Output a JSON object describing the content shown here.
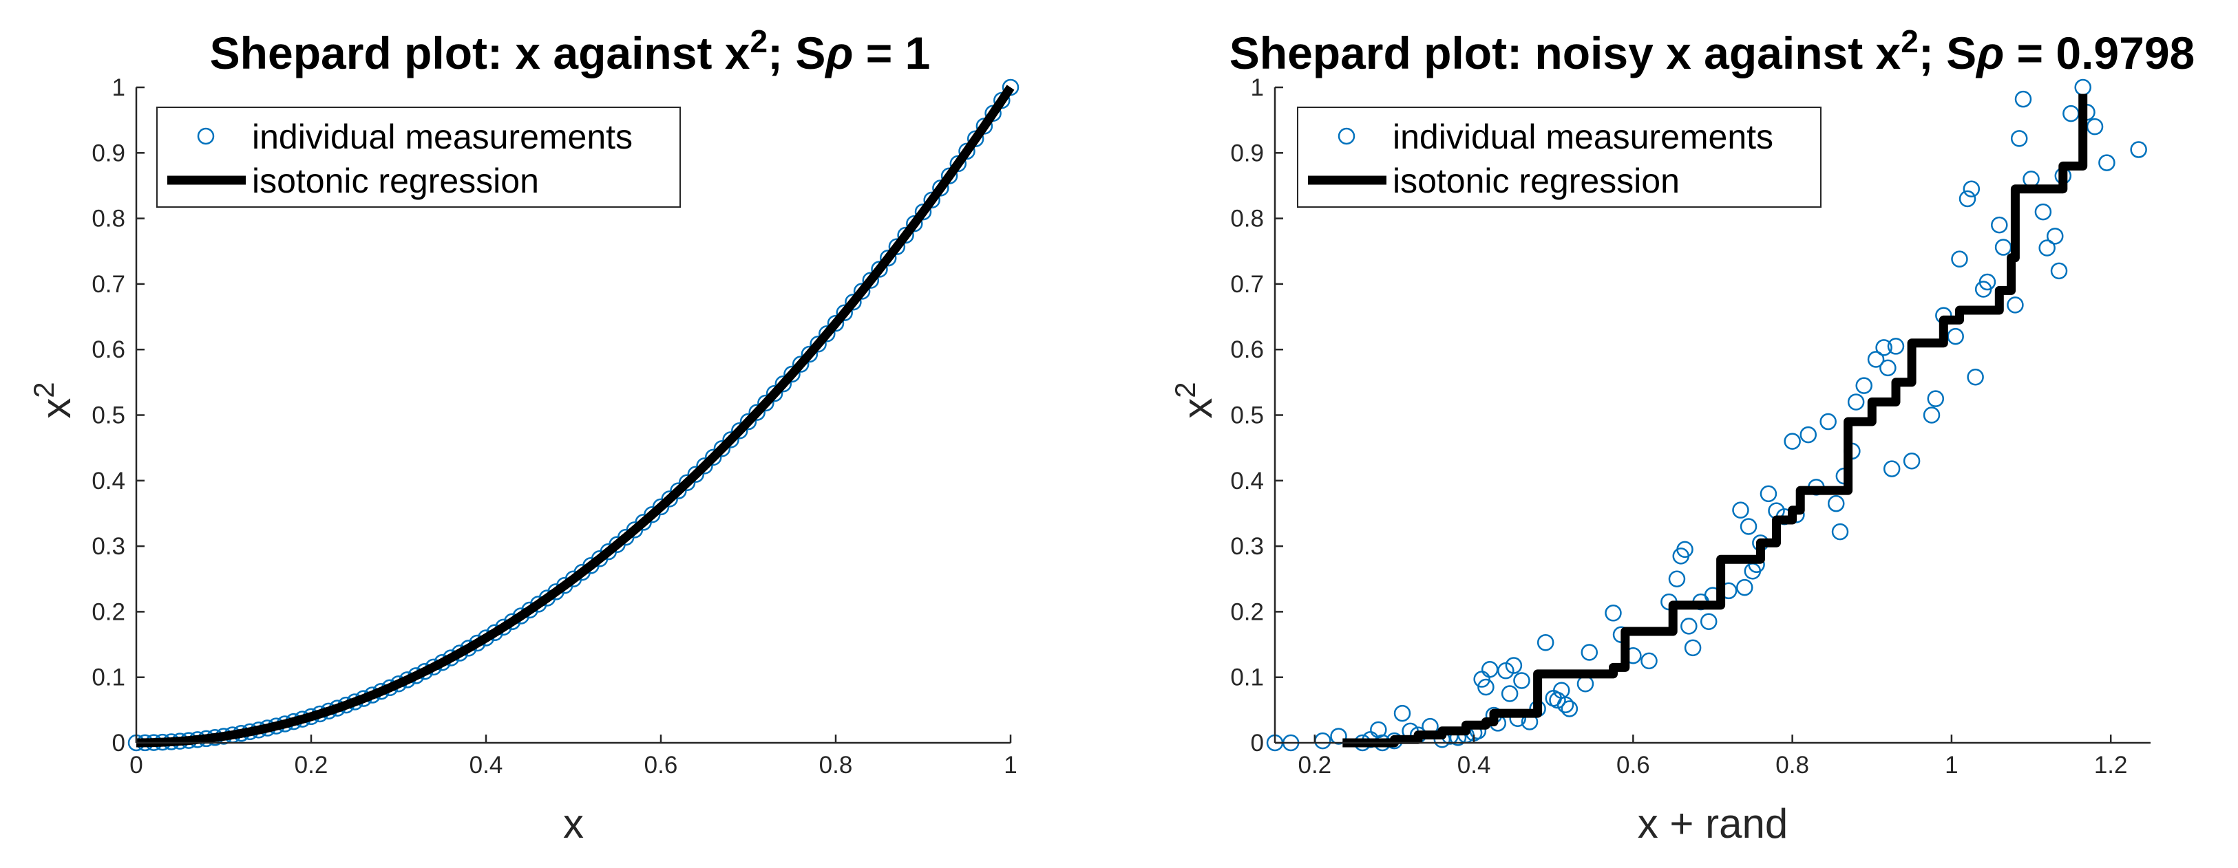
{
  "colors": {
    "marker": "#0072BD",
    "line": "#000000",
    "axis": "#262626",
    "background": "#ffffff"
  },
  "chart_data": [
    {
      "type": "scatter",
      "title_parts": {
        "pre": "Shepard plot: x against x",
        "sup": "2",
        "mid": "; S",
        "greek": "ρ",
        "post": " = 1"
      },
      "xlabel": "x",
      "ylabel": {
        "base": "x",
        "sup": "2"
      },
      "xlim": [
        0,
        1
      ],
      "ylim": [
        0,
        1
      ],
      "xticks": [
        0,
        0.2,
        0.4,
        0.6,
        0.8,
        1
      ],
      "xtick_labels": [
        "0",
        "0.2",
        "0.4",
        "0.6",
        "0.8",
        "1"
      ],
      "yticks": [
        0,
        0.1,
        0.2,
        0.3,
        0.4,
        0.5,
        0.6,
        0.7,
        0.8,
        0.9,
        1
      ],
      "ytick_labels": [
        "0",
        "0.1",
        "0.2",
        "0.3",
        "0.4",
        "0.5",
        "0.6",
        "0.7",
        "0.8",
        "0.9",
        "1"
      ],
      "legend": {
        "position": "top-left",
        "entries": [
          "individual measurements",
          "isotonic regression"
        ]
      },
      "series": [
        {
          "name": "individual measurements",
          "kind": "markers",
          "x": [
            0,
            0.01,
            0.02,
            0.03,
            0.04,
            0.05,
            0.06,
            0.07,
            0.08,
            0.09,
            0.1,
            0.11,
            0.12,
            0.13,
            0.14,
            0.15,
            0.16,
            0.17,
            0.18,
            0.19,
            0.2,
            0.21,
            0.22,
            0.23,
            0.24,
            0.25,
            0.26,
            0.27,
            0.28,
            0.29,
            0.3,
            0.31,
            0.32,
            0.33,
            0.34,
            0.35,
            0.36,
            0.37,
            0.38,
            0.39,
            0.4,
            0.41,
            0.42,
            0.43,
            0.44,
            0.45,
            0.46,
            0.47,
            0.48,
            0.49,
            0.5,
            0.51,
            0.52,
            0.53,
            0.54,
            0.55,
            0.56,
            0.57,
            0.58,
            0.59,
            0.6,
            0.61,
            0.62,
            0.63,
            0.64,
            0.65,
            0.66,
            0.67,
            0.68,
            0.69,
            0.7,
            0.71,
            0.72,
            0.73,
            0.74,
            0.75,
            0.76,
            0.77,
            0.78,
            0.79,
            0.8,
            0.81,
            0.82,
            0.83,
            0.84,
            0.85,
            0.86,
            0.87,
            0.88,
            0.89,
            0.9,
            0.91,
            0.92,
            0.93,
            0.94,
            0.95,
            0.96,
            0.97,
            0.98,
            0.99,
            1
          ],
          "y": [
            0,
            0.0001,
            0.0004,
            0.0009,
            0.0016,
            0.0025,
            0.0036,
            0.0049,
            0.0064,
            0.0081,
            0.01,
            0.0121,
            0.0144,
            0.0169,
            0.0196,
            0.0225,
            0.0256,
            0.0289,
            0.0324,
            0.0361,
            0.04,
            0.0441,
            0.0484,
            0.0529,
            0.0576,
            0.0625,
            0.0676,
            0.0729,
            0.0784,
            0.0841,
            0.09,
            0.0961,
            0.1024,
            0.1089,
            0.1156,
            0.1225,
            0.1296,
            0.1369,
            0.1444,
            0.1521,
            0.16,
            0.1681,
            0.1764,
            0.1849,
            0.1936,
            0.2025,
            0.2116,
            0.2209,
            0.2304,
            0.2401,
            0.25,
            0.2601,
            0.2704,
            0.2809,
            0.2916,
            0.3025,
            0.3136,
            0.3249,
            0.3364,
            0.3481,
            0.36,
            0.3721,
            0.3844,
            0.3969,
            0.4096,
            0.4225,
            0.4356,
            0.4489,
            0.4624,
            0.4761,
            0.49,
            0.5041,
            0.5184,
            0.5329,
            0.5476,
            0.5625,
            0.5776,
            0.5929,
            0.6084,
            0.6241,
            0.64,
            0.6561,
            0.6724,
            0.6889,
            0.7056,
            0.7225,
            0.7396,
            0.7569,
            0.7744,
            0.7921,
            0.81,
            0.8281,
            0.8464,
            0.8649,
            0.8836,
            0.9025,
            0.9216,
            0.9409,
            0.9604,
            0.9801,
            1
          ]
        },
        {
          "name": "isotonic regression",
          "kind": "line",
          "x": [
            0,
            0.01,
            0.02,
            0.03,
            0.04,
            0.05,
            0.06,
            0.07,
            0.08,
            0.09,
            0.1,
            0.11,
            0.12,
            0.13,
            0.14,
            0.15,
            0.16,
            0.17,
            0.18,
            0.19,
            0.2,
            0.21,
            0.22,
            0.23,
            0.24,
            0.25,
            0.26,
            0.27,
            0.28,
            0.29,
            0.3,
            0.31,
            0.32,
            0.33,
            0.34,
            0.35,
            0.36,
            0.37,
            0.38,
            0.39,
            0.4,
            0.41,
            0.42,
            0.43,
            0.44,
            0.45,
            0.46,
            0.47,
            0.48,
            0.49,
            0.5,
            0.51,
            0.52,
            0.53,
            0.54,
            0.55,
            0.56,
            0.57,
            0.58,
            0.59,
            0.6,
            0.61,
            0.62,
            0.63,
            0.64,
            0.65,
            0.66,
            0.67,
            0.68,
            0.69,
            0.7,
            0.71,
            0.72,
            0.73,
            0.74,
            0.75,
            0.76,
            0.77,
            0.78,
            0.79,
            0.8,
            0.81,
            0.82,
            0.83,
            0.84,
            0.85,
            0.86,
            0.87,
            0.88,
            0.89,
            0.9,
            0.91,
            0.92,
            0.93,
            0.94,
            0.95,
            0.96,
            0.97,
            0.98,
            0.99,
            1
          ],
          "y": [
            0,
            0.0001,
            0.0004,
            0.0009,
            0.0016,
            0.0025,
            0.0036,
            0.0049,
            0.0064,
            0.0081,
            0.01,
            0.0121,
            0.0144,
            0.0169,
            0.0196,
            0.0225,
            0.0256,
            0.0289,
            0.0324,
            0.0361,
            0.04,
            0.0441,
            0.0484,
            0.0529,
            0.0576,
            0.0625,
            0.0676,
            0.0729,
            0.0784,
            0.0841,
            0.09,
            0.0961,
            0.1024,
            0.1089,
            0.1156,
            0.1225,
            0.1296,
            0.1369,
            0.1444,
            0.1521,
            0.16,
            0.1681,
            0.1764,
            0.1849,
            0.1936,
            0.2025,
            0.2116,
            0.2209,
            0.2304,
            0.2401,
            0.25,
            0.2601,
            0.2704,
            0.2809,
            0.2916,
            0.3025,
            0.3136,
            0.3249,
            0.3364,
            0.3481,
            0.36,
            0.3721,
            0.3844,
            0.3969,
            0.4096,
            0.4225,
            0.4356,
            0.4489,
            0.4624,
            0.4761,
            0.49,
            0.5041,
            0.5184,
            0.5329,
            0.5476,
            0.5625,
            0.5776,
            0.5929,
            0.6084,
            0.6241,
            0.64,
            0.6561,
            0.6724,
            0.6889,
            0.7056,
            0.7225,
            0.7396,
            0.7569,
            0.7744,
            0.7921,
            0.81,
            0.8281,
            0.8464,
            0.8649,
            0.8836,
            0.9025,
            0.9216,
            0.9409,
            0.9604,
            0.9801,
            1
          ]
        }
      ]
    },
    {
      "type": "scatter",
      "title_parts": {
        "pre": "Shepard plot: noisy x against x",
        "sup": "2",
        "mid": "; S",
        "greek": "ρ",
        "post": " = 0.9798"
      },
      "xlabel": "x + rand",
      "ylabel": {
        "base": "x",
        "sup": "2"
      },
      "xlim": [
        0.15,
        1.25
      ],
      "ylim": [
        0,
        1
      ],
      "xticks": [
        0.2,
        0.4,
        0.6,
        0.8,
        1,
        1.2
      ],
      "xtick_labels": [
        "0.2",
        "0.4",
        "0.6",
        "0.8",
        "1",
        "1.2"
      ],
      "yticks": [
        0,
        0.1,
        0.2,
        0.3,
        0.4,
        0.5,
        0.6,
        0.7,
        0.8,
        0.9,
        1
      ],
      "ytick_labels": [
        "0",
        "0.1",
        "0.2",
        "0.3",
        "0.4",
        "0.5",
        "0.6",
        "0.7",
        "0.8",
        "0.9",
        "1"
      ],
      "legend": {
        "position": "top-left",
        "entries": [
          "individual measurements",
          "isotonic regression"
        ]
      },
      "series": [
        {
          "name": "individual measurements",
          "kind": "markers",
          "x": [
            0.15,
            0.17,
            0.21,
            0.23,
            0.26,
            0.27,
            0.28,
            0.285,
            0.3,
            0.31,
            0.32,
            0.33,
            0.345,
            0.36,
            0.37,
            0.38,
            0.39,
            0.4,
            0.405,
            0.41,
            0.415,
            0.42,
            0.425,
            0.43,
            0.44,
            0.445,
            0.45,
            0.455,
            0.46,
            0.47,
            0.48,
            0.49,
            0.5,
            0.505,
            0.51,
            0.515,
            0.52,
            0.54,
            0.545,
            0.575,
            0.585,
            0.6,
            0.62,
            0.645,
            0.655,
            0.66,
            0.665,
            0.67,
            0.675,
            0.685,
            0.695,
            0.7,
            0.72,
            0.735,
            0.74,
            0.745,
            0.75,
            0.755,
            0.76,
            0.77,
            0.78,
            0.79,
            0.8,
            0.805,
            0.82,
            0.83,
            0.845,
            0.855,
            0.86,
            0.865,
            0.875,
            0.88,
            0.89,
            0.905,
            0.915,
            0.92,
            0.925,
            0.93,
            0.95,
            0.975,
            0.98,
            0.99,
            1.005,
            1.01,
            1.02,
            1.025,
            1.03,
            1.04,
            1.045,
            1.06,
            1.065,
            1.08,
            1.085,
            1.09,
            1.1,
            1.115,
            1.12,
            1.13,
            1.135,
            1.14,
            1.15,
            1.165,
            1.17,
            1.18,
            1.195,
            1.235
          ],
          "y": [
            0.0,
            0.0,
            0.003,
            0.01,
            0.0,
            0.005,
            0.02,
            0.0,
            0.003,
            0.045,
            0.018,
            0.012,
            0.025,
            0.005,
            0.01,
            0.008,
            0.012,
            0.015,
            0.018,
            0.097,
            0.085,
            0.112,
            0.042,
            0.03,
            0.11,
            0.075,
            0.118,
            0.037,
            0.095,
            0.032,
            0.052,
            0.153,
            0.068,
            0.065,
            0.08,
            0.058,
            0.052,
            0.09,
            0.138,
            0.198,
            0.165,
            0.133,
            0.125,
            0.215,
            0.25,
            0.285,
            0.295,
            0.178,
            0.145,
            0.215,
            0.185,
            0.225,
            0.232,
            0.355,
            0.237,
            0.33,
            0.262,
            0.272,
            0.305,
            0.38,
            0.354,
            0.345,
            0.46,
            0.348,
            0.47,
            0.39,
            0.49,
            0.365,
            0.322,
            0.407,
            0.445,
            0.52,
            0.545,
            0.585,
            0.603,
            0.572,
            0.418,
            0.605,
            0.43,
            0.5,
            0.525,
            0.652,
            0.62,
            0.738,
            0.83,
            0.845,
            0.558,
            0.692,
            0.703,
            0.79,
            0.756,
            0.668,
            0.922,
            0.982,
            0.86,
            0.81,
            0.755,
            0.773,
            0.72,
            0.865,
            0.96,
            1.0,
            0.962,
            0.94,
            0.885,
            0.905
          ]
        },
        {
          "name": "isotonic regression",
          "kind": "line",
          "x": [
            0.235,
            0.3,
            0.3,
            0.33,
            0.33,
            0.36,
            0.36,
            0.39,
            0.39,
            0.415,
            0.415,
            0.425,
            0.425,
            0.48,
            0.48,
            0.575,
            0.575,
            0.59,
            0.59,
            0.65,
            0.65,
            0.71,
            0.71,
            0.76,
            0.76,
            0.78,
            0.78,
            0.8,
            0.8,
            0.81,
            0.81,
            0.87,
            0.87,
            0.9,
            0.9,
            0.93,
            0.93,
            0.95,
            0.95,
            0.99,
            0.99,
            1.01,
            1.01,
            1.06,
            1.06,
            1.075,
            1.075,
            1.08,
            1.08,
            1.14,
            1.14,
            1.165,
            1.165
          ],
          "y": [
            0.0,
            0.0,
            0.005,
            0.005,
            0.012,
            0.012,
            0.018,
            0.018,
            0.027,
            0.027,
            0.032,
            0.032,
            0.045,
            0.045,
            0.105,
            0.105,
            0.115,
            0.115,
            0.17,
            0.17,
            0.21,
            0.21,
            0.28,
            0.28,
            0.305,
            0.305,
            0.34,
            0.34,
            0.355,
            0.355,
            0.385,
            0.385,
            0.49,
            0.49,
            0.52,
            0.52,
            0.55,
            0.55,
            0.61,
            0.61,
            0.645,
            0.645,
            0.66,
            0.66,
            0.69,
            0.69,
            0.74,
            0.74,
            0.845,
            0.845,
            0.88,
            0.88,
            0.99
          ]
        }
      ]
    }
  ]
}
